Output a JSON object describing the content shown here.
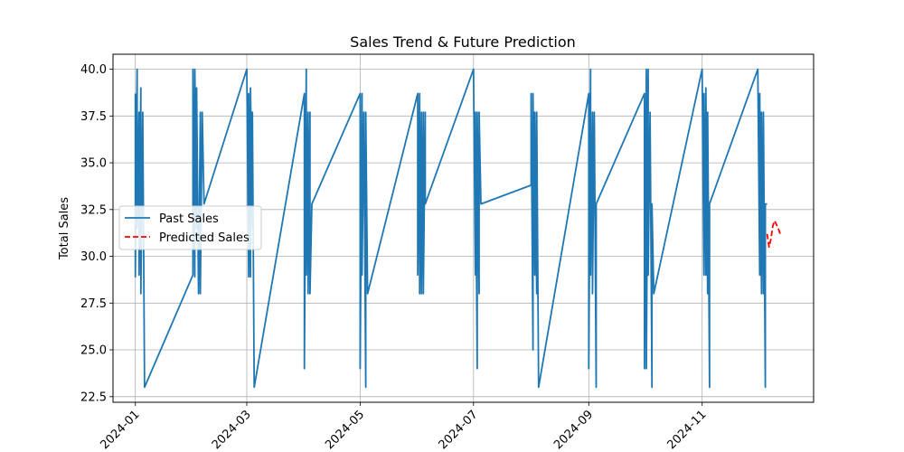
{
  "chart_data": {
    "type": "line",
    "title": "Sales Trend & Future Prediction",
    "xlabel": "",
    "ylabel": "Total Sales",
    "x_axis": {
      "type": "date",
      "range": [
        "2023-12-20",
        "2024-12-31"
      ],
      "ticks": [
        "2024-01",
        "2024-03",
        "2024-05",
        "2024-07",
        "2024-09",
        "2024-11"
      ],
      "tick_dates": [
        "2024-01-01",
        "2024-03-01",
        "2024-05-01",
        "2024-07-01",
        "2024-09-01",
        "2024-11-01"
      ]
    },
    "y_axis": {
      "range": [
        22.2,
        40.8
      ],
      "ticks": [
        "22.5",
        "25.0",
        "27.5",
        "30.0",
        "32.5",
        "35.0",
        "37.5",
        "40.0"
      ],
      "tick_values": [
        22.5,
        25.0,
        27.5,
        30.0,
        32.5,
        35.0,
        37.5,
        40.0
      ]
    },
    "grid": true,
    "legend": {
      "position": "center-left",
      "entries": [
        "Past Sales",
        "Predicted Sales"
      ]
    },
    "series": [
      {
        "name": "Past Sales",
        "color": "#1f77b4",
        "style": "solid",
        "points": [
          [
            "2024-01-01",
            38.7
          ],
          [
            "2024-01-01",
            28.9
          ],
          [
            "2024-01-02",
            40.0
          ],
          [
            "2024-01-02",
            31.5
          ],
          [
            "2024-01-03",
            37.7
          ],
          [
            "2024-01-03",
            29.0
          ],
          [
            "2024-01-04",
            39.0
          ],
          [
            "2024-01-04",
            28.0
          ],
          [
            "2024-01-05",
            37.7
          ],
          [
            "2024-01-06",
            23.0
          ],
          [
            "2024-02-01",
            29.0
          ],
          [
            "2024-02-01",
            40.0
          ],
          [
            "2024-02-02",
            28.9
          ],
          [
            "2024-02-02",
            40.0
          ],
          [
            "2024-02-03",
            31.5
          ],
          [
            "2024-02-03",
            39.0
          ],
          [
            "2024-02-04",
            28.0
          ],
          [
            "2024-02-05",
            37.7
          ],
          [
            "2024-02-05",
            28.0
          ],
          [
            "2024-02-06",
            37.7
          ],
          [
            "2024-02-07",
            32.8
          ],
          [
            "2024-03-01",
            40.0
          ],
          [
            "2024-03-02",
            28.9
          ],
          [
            "2024-03-02",
            38.7
          ],
          [
            "2024-03-03",
            28.9
          ],
          [
            "2024-03-03",
            39.0
          ],
          [
            "2024-03-04",
            31.5
          ],
          [
            "2024-03-04",
            37.7
          ],
          [
            "2024-03-05",
            23.0
          ],
          [
            "2024-04-01",
            38.7
          ],
          [
            "2024-04-01",
            24.0
          ],
          [
            "2024-04-02",
            40.0
          ],
          [
            "2024-04-02",
            29.0
          ],
          [
            "2024-04-03",
            37.7
          ],
          [
            "2024-04-03",
            28.0
          ],
          [
            "2024-04-04",
            37.7
          ],
          [
            "2024-04-04",
            28.0
          ],
          [
            "2024-04-05",
            32.8
          ],
          [
            "2024-05-01",
            38.7
          ],
          [
            "2024-05-01",
            24.0
          ],
          [
            "2024-05-02",
            38.7
          ],
          [
            "2024-05-02",
            29.0
          ],
          [
            "2024-05-03",
            37.7
          ],
          [
            "2024-05-04",
            23.0
          ],
          [
            "2024-05-04",
            37.7
          ],
          [
            "2024-05-05",
            28.0
          ],
          [
            "2024-06-01",
            38.7
          ],
          [
            "2024-06-01",
            29.0
          ],
          [
            "2024-06-02",
            38.7
          ],
          [
            "2024-06-02",
            28.0
          ],
          [
            "2024-06-03",
            37.7
          ],
          [
            "2024-06-03",
            28.0
          ],
          [
            "2024-06-04",
            37.7
          ],
          [
            "2024-06-04",
            28.0
          ],
          [
            "2024-06-05",
            37.7
          ],
          [
            "2024-06-05",
            32.8
          ],
          [
            "2024-07-01",
            40.0
          ],
          [
            "2024-07-02",
            29.0
          ],
          [
            "2024-07-02",
            37.7
          ],
          [
            "2024-07-03",
            24.0
          ],
          [
            "2024-07-03",
            37.7
          ],
          [
            "2024-07-04",
            28.0
          ],
          [
            "2024-07-04",
            37.7
          ],
          [
            "2024-07-05",
            32.8
          ],
          [
            "2024-08-01",
            33.8
          ],
          [
            "2024-08-01",
            38.7
          ],
          [
            "2024-08-02",
            25.0
          ],
          [
            "2024-08-02",
            38.7
          ],
          [
            "2024-08-03",
            29.0
          ],
          [
            "2024-08-03",
            37.7
          ],
          [
            "2024-08-04",
            28.0
          ],
          [
            "2024-08-04",
            37.7
          ],
          [
            "2024-08-05",
            23.0
          ],
          [
            "2024-09-01",
            38.7
          ],
          [
            "2024-09-01",
            24.0
          ],
          [
            "2024-09-02",
            40.0
          ],
          [
            "2024-09-02",
            29.0
          ],
          [
            "2024-09-03",
            37.7
          ],
          [
            "2024-09-03",
            28.0
          ],
          [
            "2024-09-04",
            37.7
          ],
          [
            "2024-09-05",
            23.0
          ],
          [
            "2024-09-05",
            32.8
          ],
          [
            "2024-10-01",
            38.7
          ],
          [
            "2024-10-01",
            24.0
          ],
          [
            "2024-10-02",
            40.0
          ],
          [
            "2024-10-02",
            24.0
          ],
          [
            "2024-10-03",
            40.0
          ],
          [
            "2024-10-03",
            29.0
          ],
          [
            "2024-10-04",
            37.7
          ],
          [
            "2024-10-05",
            23.0
          ],
          [
            "2024-10-05",
            32.8
          ],
          [
            "2024-10-06",
            28.0
          ],
          [
            "2024-11-01",
            40.0
          ],
          [
            "2024-11-02",
            29.0
          ],
          [
            "2024-11-02",
            38.7
          ],
          [
            "2024-11-03",
            29.0
          ],
          [
            "2024-11-03",
            39.0
          ],
          [
            "2024-11-04",
            28.0
          ],
          [
            "2024-11-04",
            37.7
          ],
          [
            "2024-11-05",
            23.0
          ],
          [
            "2024-11-05",
            32.8
          ],
          [
            "2024-12-01",
            40.0
          ],
          [
            "2024-12-02",
            29.0
          ],
          [
            "2024-12-02",
            38.7
          ],
          [
            "2024-12-03",
            28.0
          ],
          [
            "2024-12-03",
            37.7
          ],
          [
            "2024-12-04",
            28.0
          ],
          [
            "2024-12-04",
            37.7
          ],
          [
            "2024-12-05",
            23.0
          ],
          [
            "2024-12-05",
            32.8
          ],
          [
            "2024-12-06",
            32.8
          ]
        ]
      },
      {
        "name": "Predicted Sales",
        "color": "#ff0000",
        "style": "dashed",
        "points": [
          [
            "2024-12-06",
            31.2
          ],
          [
            "2024-12-07",
            30.5
          ],
          [
            "2024-12-08",
            30.9
          ],
          [
            "2024-12-09",
            31.6
          ],
          [
            "2024-12-10",
            31.9
          ],
          [
            "2024-12-11",
            31.7
          ],
          [
            "2024-12-12",
            31.5
          ],
          [
            "2024-12-13",
            31.2
          ]
        ]
      }
    ]
  }
}
